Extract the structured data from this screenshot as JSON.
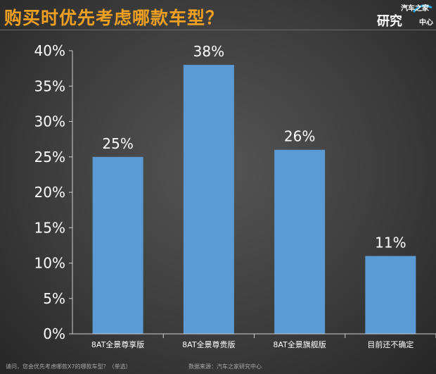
{
  "header": {
    "title": "购买时优先考虑哪款车型？",
    "logo_top": "汽车之家",
    "logo_big": "研究",
    "logo_small": "中心"
  },
  "footer": {
    "question": "请问，您会优先考虑哪款X7的哪款车型？（单选）",
    "source": "数据来源：汽车之家研究中心"
  },
  "colors": {
    "bar": "#5b9bd5",
    "title": "#f0a020",
    "text": "#ffffff"
  },
  "chart_data": {
    "type": "bar",
    "categories": [
      "8AT全景尊享版",
      "8AT全景尊贵版",
      "8AT全景旗舰版",
      "目前还不确定"
    ],
    "values": [
      25,
      38,
      26,
      11
    ],
    "data_labels": [
      "25%",
      "38%",
      "26%",
      "11%"
    ],
    "y_ticks": [
      "0%",
      "5%",
      "10%",
      "15%",
      "20%",
      "25%",
      "30%",
      "35%",
      "40%"
    ],
    "ylim": [
      0,
      40
    ],
    "grid": false,
    "legend": "none"
  }
}
